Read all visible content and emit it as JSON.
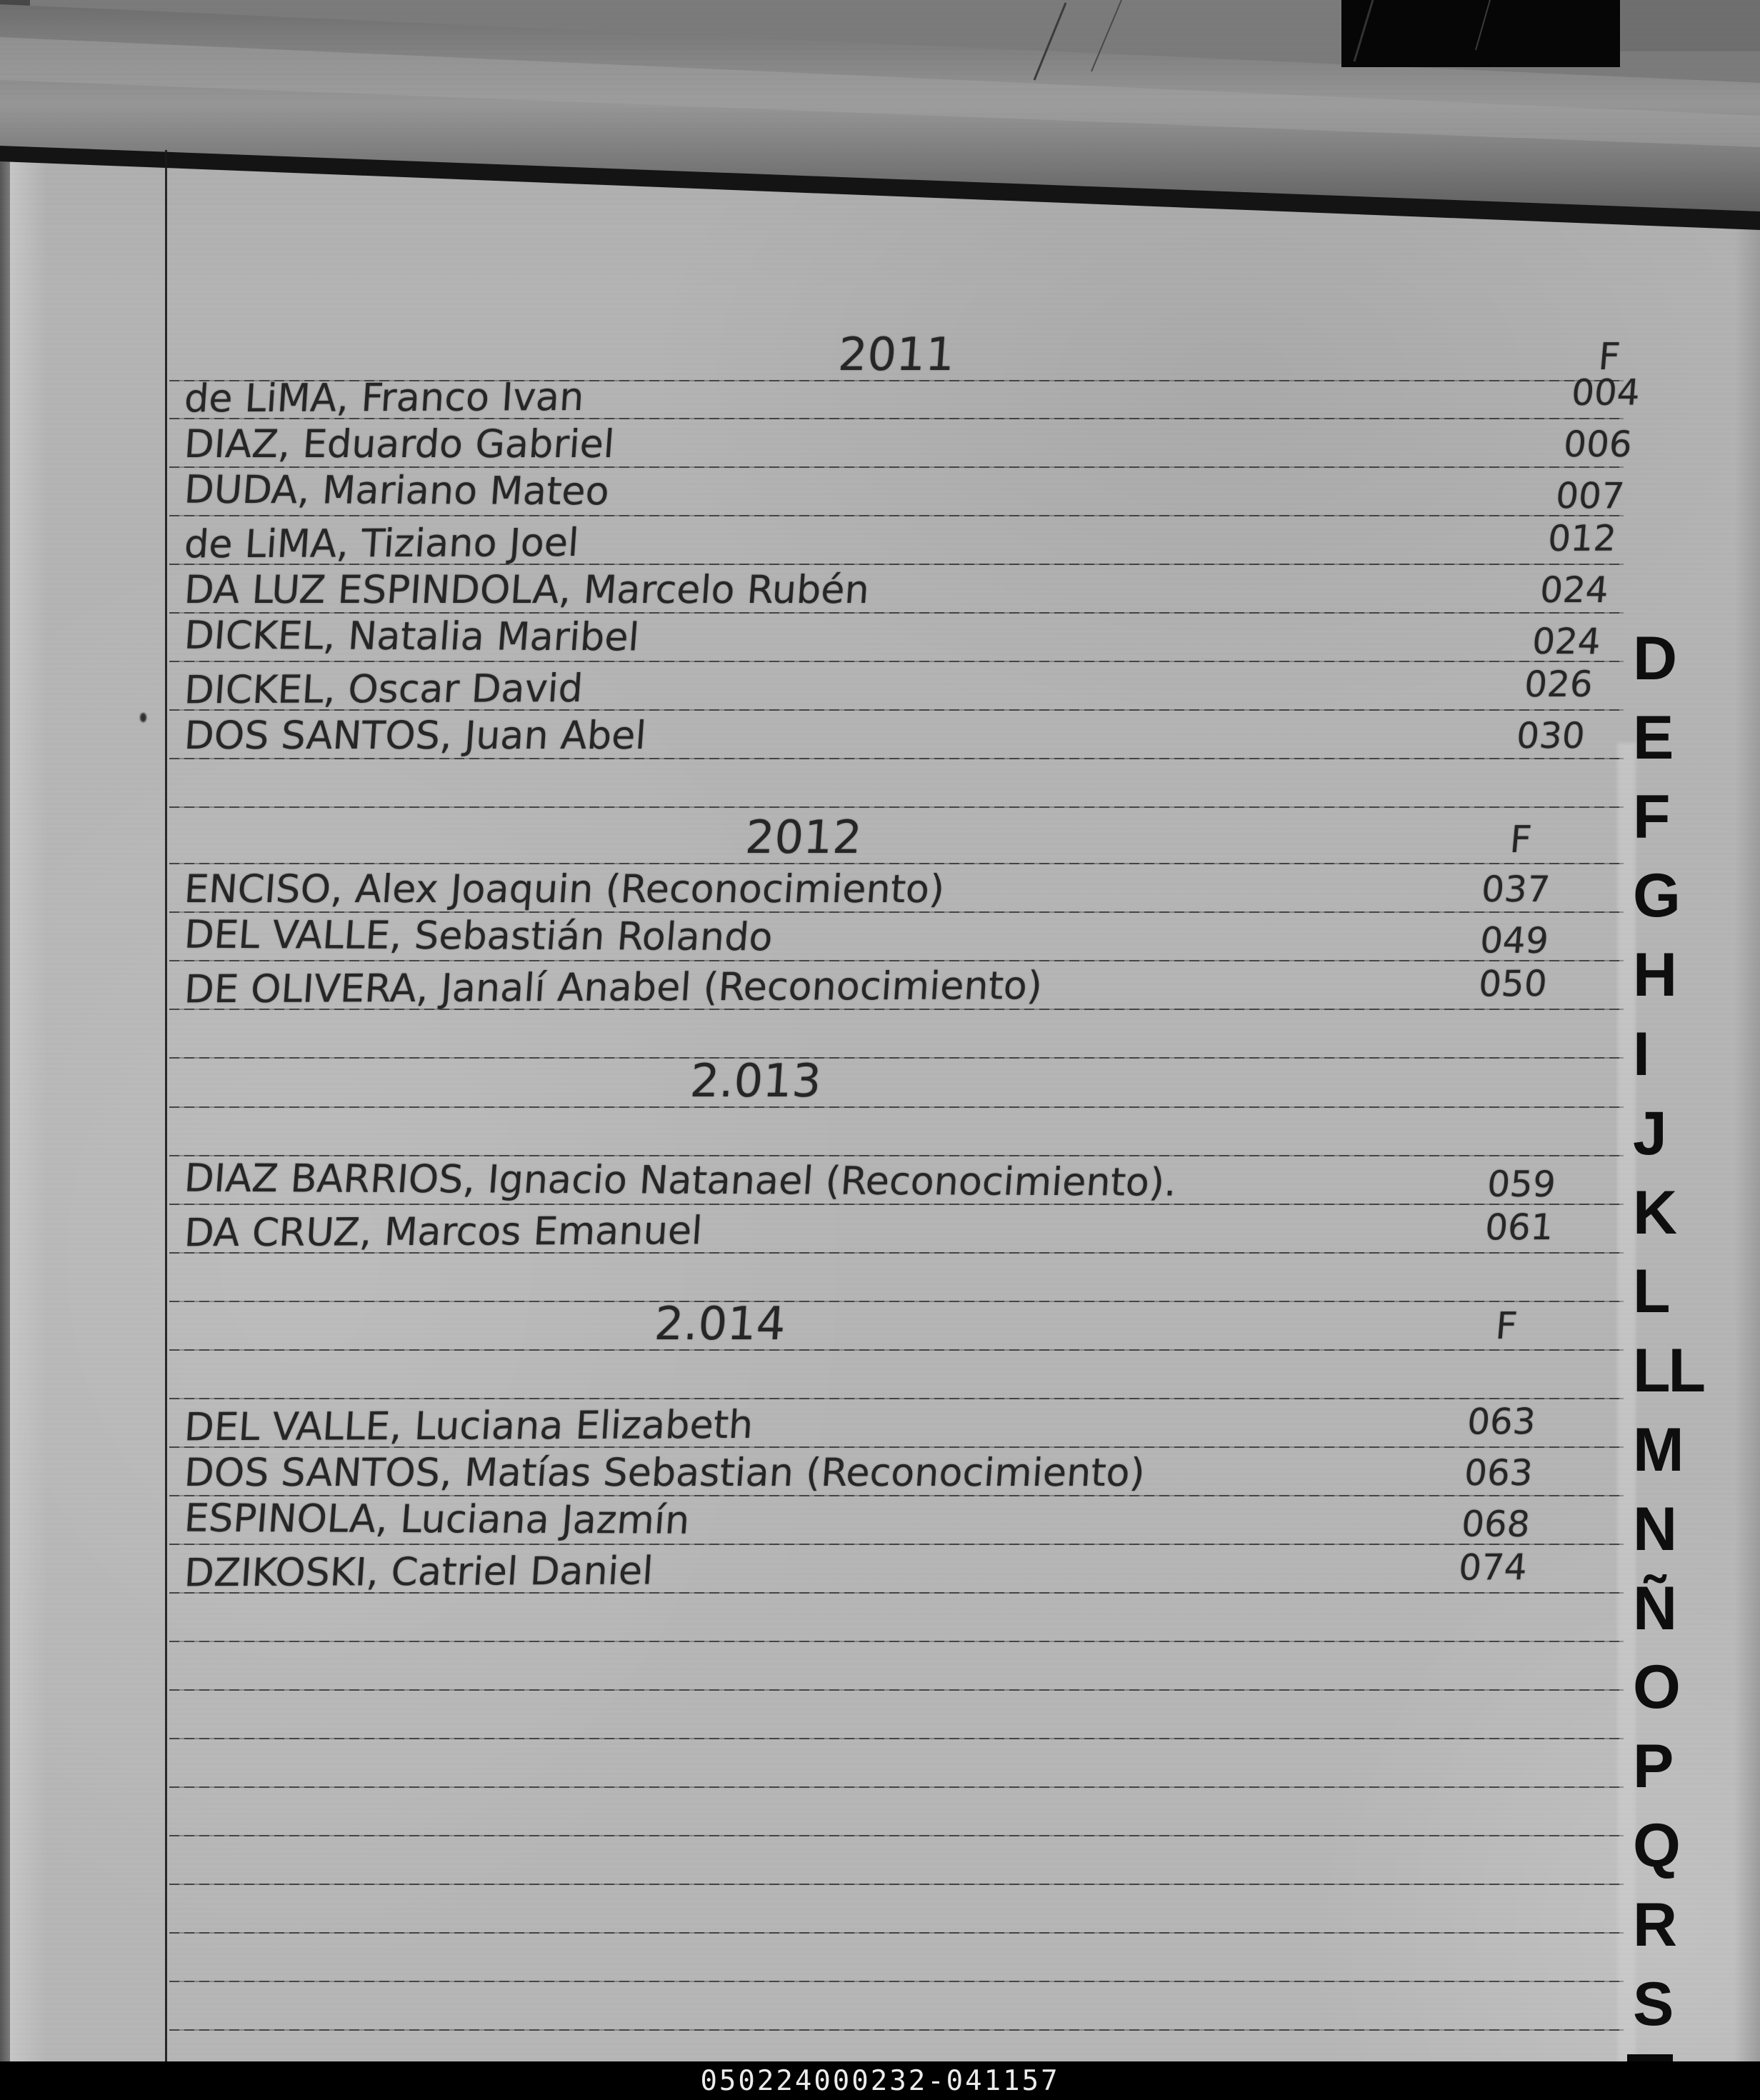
{
  "colors": {
    "page": "#b4b4b4",
    "ink": "#262626",
    "tab_letters": "#0e0e0e",
    "footer_bar": "#000000",
    "footer_text": "#ededed"
  },
  "tabs": [
    "D",
    "E",
    "F",
    "G",
    "H",
    "I",
    "J",
    "K",
    "L",
    "LL",
    "M",
    "N",
    "Ñ",
    "O",
    "P",
    "Q",
    "R",
    "S"
  ],
  "sections": [
    {
      "year": "2011",
      "col_header": "F",
      "entries": [
        {
          "name": "de LiMA, Franco Ivan",
          "page": "004"
        },
        {
          "name": "DIAZ, Eduardo Gabriel",
          "page": "006"
        },
        {
          "name": "DUDA, Mariano Mateo",
          "page": "007"
        },
        {
          "name": "de LiMA, Tiziano Joel",
          "page": "012"
        },
        {
          "name": "DA LUZ ESPINDOLA, Marcelo Rubén",
          "page": "024"
        },
        {
          "name": "DICKEL, Natalia Maribel",
          "page": "024"
        },
        {
          "name": "DICKEL, Oscar David",
          "page": "026"
        },
        {
          "name": "DOS SANTOS, Juan Abel",
          "page": "030"
        }
      ]
    },
    {
      "year": "2012",
      "col_header": "F",
      "entries": [
        {
          "name": "ENCISO, Alex Joaquin (Reconocimiento)",
          "page": "037"
        },
        {
          "name": "DEL VALLE, Sebastián Rolando",
          "page": "049"
        },
        {
          "name": "DE OLIVERA, Janalí Anabel (Reconocimiento)",
          "page": "050"
        }
      ]
    },
    {
      "year": "2.013",
      "col_header": "",
      "entries": [
        {
          "name": "DIAZ BARRIOS, Ignacio Natanael (Reconocimiento).",
          "page": "059"
        },
        {
          "name": "DA CRUZ, Marcos Emanuel",
          "page": "061"
        }
      ]
    },
    {
      "year": "2.014",
      "col_header": "F",
      "entries": [
        {
          "name": "DEL VALLE, Luciana Elizabeth",
          "page": "063"
        },
        {
          "name": "DOS SANTOS, Matías Sebastian (Reconocimiento)",
          "page": "063"
        },
        {
          "name": "ESPINOLA, Luciana Jazmín",
          "page": "068"
        },
        {
          "name": "DZIKOSKI, Catriel Daniel",
          "page": "074"
        }
      ]
    }
  ],
  "footer": {
    "code": "050224000232-041157"
  }
}
